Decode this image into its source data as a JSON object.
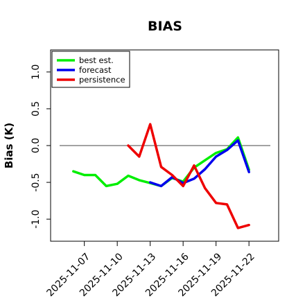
{
  "chart_data": {
    "type": "line",
    "title": "BIAS",
    "xlabel": "",
    "ylabel": "Bias (K)",
    "ylim": [
      -1.3,
      1.3
    ],
    "y_ticks": [
      "-1.0",
      "-0.5",
      "0.0",
      "0.5",
      "1.0"
    ],
    "y_tick_values": [
      -1.0,
      -0.5,
      0.0,
      0.5,
      1.0
    ],
    "x_ticks": [
      "2025-11-07",
      "2025-11-10",
      "2025-11-13",
      "2025-11-16",
      "2025-11-19",
      "2025-11-22"
    ],
    "x_tick_colors": [
      "#000000",
      "#000000",
      "#228B22",
      "#000000",
      "#000000",
      "#000000"
    ],
    "xlim": [
      "2025-11-05",
      "2025-11-23"
    ],
    "zero_line": true,
    "grid": false,
    "legend_position": "top-left",
    "series": [
      {
        "name": "best est.",
        "color": "#00ee00",
        "x": [
          "2025-11-06",
          "2025-11-07",
          "2025-11-08",
          "2025-11-09",
          "2025-11-10",
          "2025-11-11",
          "2025-11-12",
          "2025-11-13",
          "2025-11-14",
          "2025-11-15",
          "2025-11-16",
          "2025-11-17",
          "2025-11-18",
          "2025-11-19",
          "2025-11-20",
          "2025-11-21",
          "2025-11-22"
        ],
        "values": [
          -0.35,
          -0.4,
          -0.4,
          -0.55,
          -0.52,
          -0.41,
          -0.47,
          -0.51,
          -0.55,
          -0.44,
          -0.49,
          -0.3,
          -0.2,
          -0.1,
          -0.05,
          0.11,
          -0.33
        ]
      },
      {
        "name": "forecast",
        "color": "#0000ee",
        "x": [
          "2025-11-13",
          "2025-11-14",
          "2025-11-15",
          "2025-11-16",
          "2025-11-17",
          "2025-11-18",
          "2025-11-19",
          "2025-11-20",
          "2025-11-21",
          "2025-11-22"
        ],
        "values": [
          -0.5,
          -0.55,
          -0.43,
          -0.51,
          -0.45,
          -0.32,
          -0.15,
          -0.06,
          0.07,
          -0.36
        ]
      },
      {
        "name": "persistence",
        "color": "#ee0000",
        "x": [
          "2025-11-11",
          "2025-11-12",
          "2025-11-13",
          "2025-11-14",
          "2025-11-15",
          "2025-11-16",
          "2025-11-17",
          "2025-11-18",
          "2025-11-19",
          "2025-11-20",
          "2025-11-21",
          "2025-11-22"
        ],
        "values": [
          0.0,
          -0.15,
          0.29,
          -0.29,
          -0.4,
          -0.55,
          -0.27,
          -0.58,
          -0.78,
          -0.8,
          -1.12,
          -1.08
        ]
      }
    ]
  }
}
